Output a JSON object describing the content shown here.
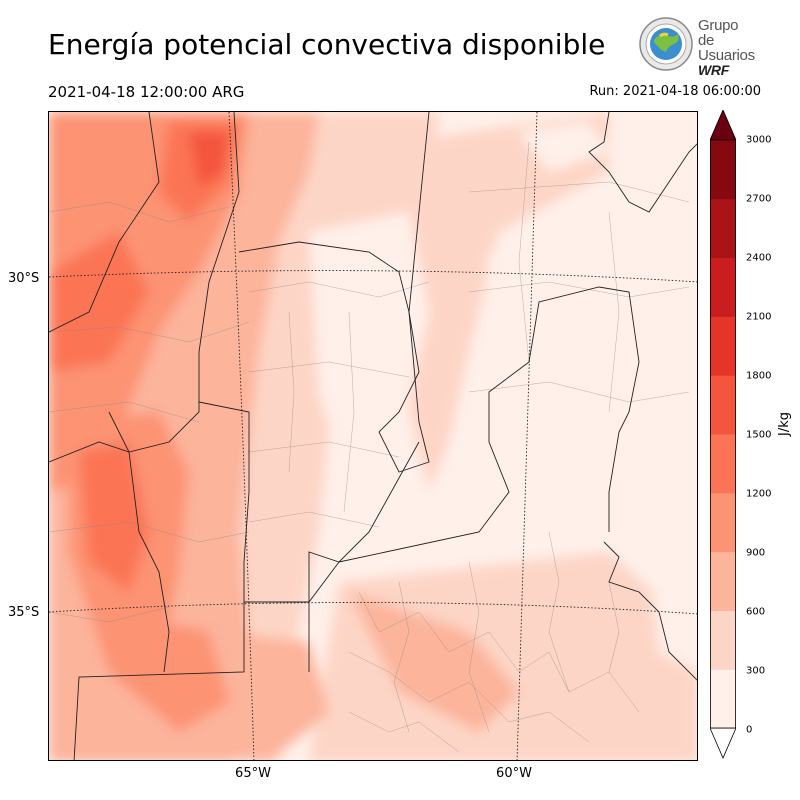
{
  "title": "Energía potencial convectiva disponible",
  "valid_time": "2021-04-18 12:00:00 ARG",
  "run_time": "Run: 2021-04-18 06:00:00",
  "logo": {
    "line1": "Grupo de",
    "line2": "Usuarios",
    "line3": "WRF",
    "icon": "globe-seal-icon"
  },
  "map": {
    "lat_labels": [
      "30°S",
      "35°S"
    ],
    "lon_labels": [
      "65°W",
      "60°W"
    ]
  },
  "colorbar": {
    "unit": "J/kg",
    "ticks": [
      "0",
      "300",
      "600",
      "900",
      "1200",
      "1500",
      "1800",
      "2100",
      "2400",
      "2700",
      "3000"
    ],
    "colors": [
      "#fff0ea",
      "#fdd5c6",
      "#fcb49b",
      "#fc9373",
      "#fb7455",
      "#f4553d",
      "#e53529",
      "#c91d1f",
      "#aa1419",
      "#860811"
    ],
    "over_color": "#6b0010",
    "extend": "both"
  }
}
